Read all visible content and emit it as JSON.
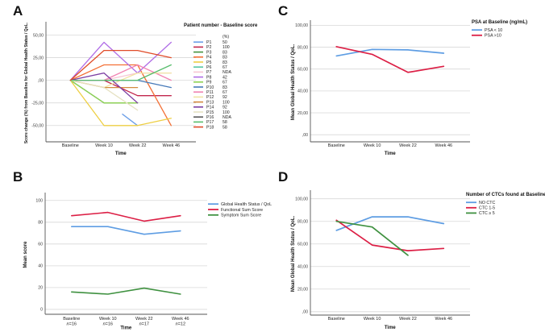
{
  "chart_data": [
    {
      "id": "A",
      "panel_label": "A",
      "type": "line",
      "xlabel": "Time",
      "ylabel": "Score change (%) from Baseline for Global Health Status / QoL.",
      "categories": [
        "Baseline",
        "Week 10",
        "Week 22",
        "Week 46"
      ],
      "ylim": [
        -68,
        62
      ],
      "yticks": {
        "values": [
          50,
          25,
          0,
          -25,
          -50
        ],
        "labels": [
          "50,00",
          "25,00",
          ",00",
          "-25,00",
          "-50,00"
        ]
      },
      "legend": {
        "title": "Patient number - Baseline score",
        "value_header": "(%)",
        "position": "right"
      },
      "grid": true,
      "series": [
        {
          "name": "P1",
          "baseline_score": "50",
          "color": "#6c9fe8",
          "x": [
            1.55,
            2
          ],
          "values": [
            -37.5,
            -50
          ]
        },
        {
          "name": "P2",
          "baseline_score": "100",
          "color": "#c2274d",
          "values": [
            0,
            0,
            -17,
            -17
          ]
        },
        {
          "name": "P3",
          "baseline_score": "83",
          "color": "#45923f",
          "values": [
            0,
            -25,
            -25,
            null
          ]
        },
        {
          "name": "P4",
          "baseline_score": "83",
          "color": "#f37036",
          "values": [
            0,
            17,
            17,
            -50
          ]
        },
        {
          "name": "P5",
          "baseline_score": "83",
          "color": "#eecf44",
          "values": [
            0,
            -50,
            -50,
            -42
          ]
        },
        {
          "name": "P6",
          "baseline_score": "67",
          "color": "#56c6a4",
          "values": [
            0,
            0,
            0,
            null
          ]
        },
        {
          "name": "P7",
          "baseline_score": "NDA",
          "color": "#f7c6d4",
          "values": [
            0,
            0,
            8,
            8
          ]
        },
        {
          "name": "P8",
          "baseline_score": "42",
          "color": "#b06de6",
          "values": [
            0,
            42,
            8,
            42
          ]
        },
        {
          "name": "P9",
          "baseline_score": "67",
          "color": "#8ed254",
          "values": [
            0,
            -25,
            -25,
            null
          ]
        },
        {
          "name": "P10",
          "baseline_score": "83",
          "color": "#4679b8",
          "values": [
            0,
            0,
            0,
            -8
          ]
        },
        {
          "name": "P11",
          "baseline_score": "67",
          "color": "#f184b2",
          "values": [
            0,
            0,
            17,
            0
          ]
        },
        {
          "name": "P12",
          "baseline_score": "92",
          "color": "#f1e3a4",
          "values": [
            0,
            -8,
            8,
            8
          ]
        },
        {
          "name": "P13",
          "baseline_score": "100",
          "color": "#d3893f",
          "values": [
            0,
            -8,
            -8,
            null
          ]
        },
        {
          "name": "P14",
          "baseline_score": "92",
          "color": "#7c3fa3",
          "values": [
            0,
            8,
            -25,
            null
          ]
        },
        {
          "name": "P15",
          "baseline_score": "100",
          "color": "#e6e2c3",
          "values": [
            0,
            -8,
            -33,
            null
          ]
        },
        {
          "name": "P16",
          "baseline_score": "NDA",
          "color": "#5a5a5a",
          "values": [
            null,
            null,
            null,
            null
          ]
        },
        {
          "name": "P17",
          "baseline_score": "58",
          "color": "#58bd6d",
          "values": [
            0,
            0,
            0,
            17
          ]
        },
        {
          "name": "P18",
          "baseline_score": "58",
          "color": "#e04b28",
          "values": [
            0,
            33,
            33,
            25
          ]
        }
      ]
    },
    {
      "id": "B",
      "panel_label": "B",
      "type": "line",
      "xlabel": "Time",
      "ylabel": "Mean score",
      "categories": [
        "Baseline",
        "Week 10",
        "Week 22",
        "Week 46"
      ],
      "category_subs": [
        "n=16",
        "n=16",
        "n=17",
        "n=12"
      ],
      "ylim": [
        -4.5,
        105
      ],
      "yticks": {
        "values": [
          100,
          80,
          60,
          40,
          20,
          0
        ],
        "labels": [
          "100",
          "80",
          "60",
          "40",
          "20",
          "0"
        ]
      },
      "legend": {
        "title": null,
        "position": "right"
      },
      "grid": true,
      "series": [
        {
          "name": "Global Health Status / QoL",
          "color": "#5e9de3",
          "values": [
            76,
            76,
            69,
            72
          ]
        },
        {
          "name": "Functional Sum Score",
          "color": "#dc1f45",
          "values": [
            86,
            89,
            81,
            86
          ]
        },
        {
          "name": "Symptom Sum Score",
          "color": "#3f9140",
          "values": [
            16,
            14,
            19.5,
            14
          ]
        }
      ]
    },
    {
      "id": "C",
      "panel_label": "C",
      "type": "line",
      "xlabel": "Time",
      "ylabel": "Mean Global Health Status / QoL.",
      "categories": [
        "Baseline",
        "Week 10",
        "Week 22",
        "Week 46"
      ],
      "ylim": [
        -6.5,
        102.5
      ],
      "yticks": {
        "values": [
          100,
          80,
          60,
          40,
          20,
          0
        ],
        "labels": [
          "100,00",
          "80,00",
          "60,00",
          "40,00",
          "20,00",
          ",00"
        ]
      },
      "legend": {
        "title": "PSA at Baseline (ng/mL)",
        "position": "right"
      },
      "grid": true,
      "series": [
        {
          "name": "PSA < 10",
          "color": "#5e9de3",
          "values": [
            72,
            78,
            77.5,
            74.5
          ]
        },
        {
          "name": "PSA >10",
          "color": "#dc1f45",
          "values": [
            80.5,
            73.5,
            57,
            62.5
          ]
        }
      ]
    },
    {
      "id": "D",
      "panel_label": "D",
      "type": "line",
      "xlabel": "Time",
      "ylabel": "Mean Global Health Status / QoL.",
      "categories": [
        "Baseline",
        "Week 10",
        "Week 22",
        "Week 46"
      ],
      "ylim": [
        -3,
        105.5
      ],
      "yticks": {
        "values": [
          100,
          80,
          60,
          40,
          20,
          0
        ],
        "labels": [
          "100,00",
          "80,00",
          "60,00",
          "40,00",
          "20,00",
          ",00"
        ]
      },
      "legend": {
        "title": "Number of CTCs found at Baseline",
        "position": "right"
      },
      "grid": true,
      "series": [
        {
          "name": "NO CTC",
          "color": "#5e9de3",
          "values": [
            72,
            84,
            84,
            78
          ]
        },
        {
          "name": "CTC 1-5",
          "color": "#dc1f45",
          "values": [
            81,
            59,
            54,
            56
          ]
        },
        {
          "name": "CTC ≥ 5",
          "color": "#3f9140",
          "values": [
            80,
            75,
            50,
            null
          ]
        }
      ]
    }
  ]
}
